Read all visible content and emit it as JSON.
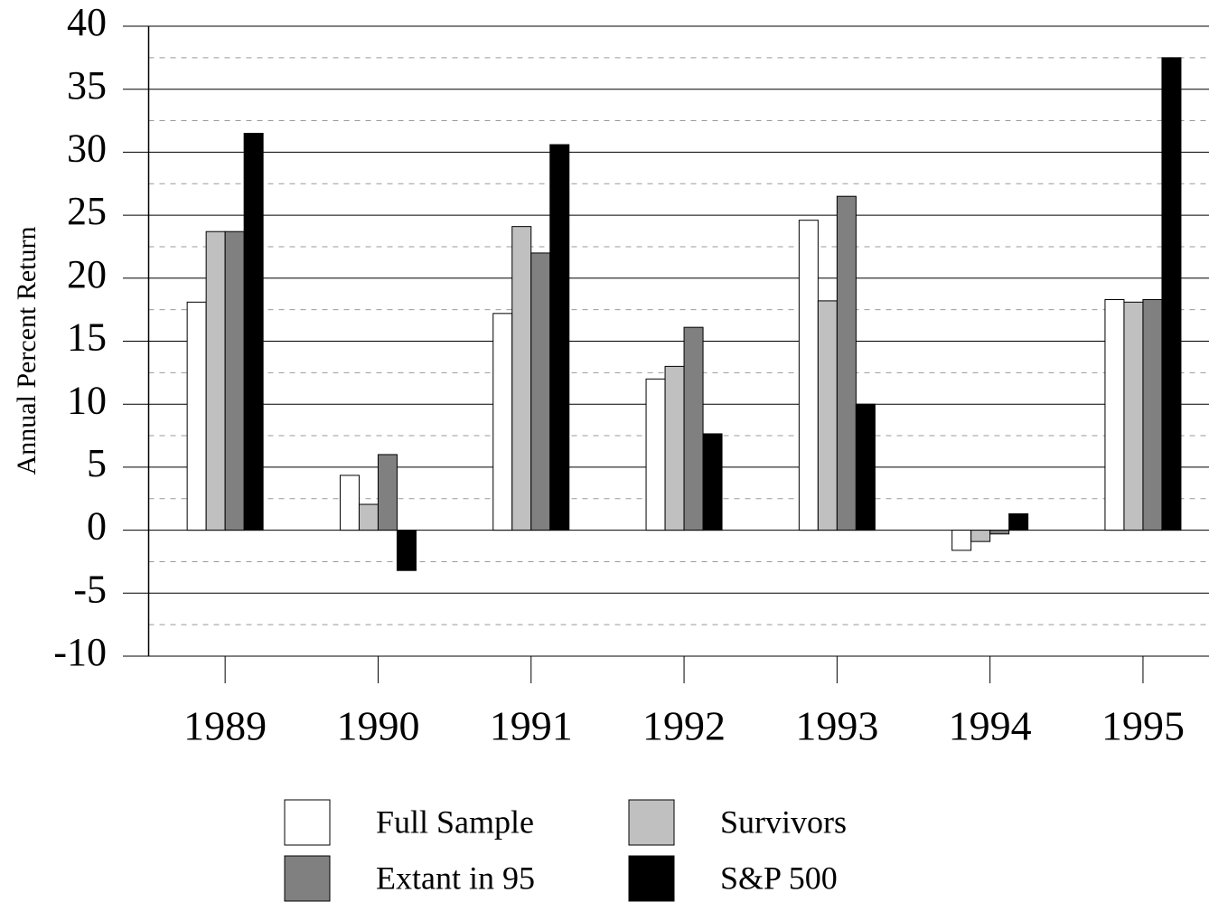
{
  "chart_data": {
    "type": "bar",
    "y_label": "Annual Percent Return",
    "categories": [
      "1989",
      "1990",
      "1991",
      "1992",
      "1993",
      "1994",
      "1995"
    ],
    "series": [
      {
        "name": "Full Sample",
        "color": "#ffffff",
        "values": [
          18.1,
          4.35,
          17.2,
          12.0,
          24.6,
          -1.6,
          18.3
        ]
      },
      {
        "name": "Survivors",
        "color": "#c0c0c0",
        "values": [
          23.7,
          2.05,
          24.1,
          13.0,
          18.2,
          -0.9,
          18.1
        ]
      },
      {
        "name": "Extant in 95",
        "color": "#808080",
        "values": [
          23.7,
          6.0,
          22.0,
          16.1,
          26.5,
          -0.3,
          18.3
        ]
      },
      {
        "name": "S&P 500",
        "color": "#000000",
        "values": [
          31.5,
          -3.2,
          30.6,
          7.65,
          10.0,
          1.3,
          37.5
        ]
      }
    ],
    "ylim": [
      -10,
      40
    ],
    "yticks": [
      -10,
      -5,
      0,
      5,
      10,
      15,
      20,
      25,
      30,
      35,
      40
    ],
    "grid": true,
    "minor_grid": true,
    "legend": "bottom"
  }
}
